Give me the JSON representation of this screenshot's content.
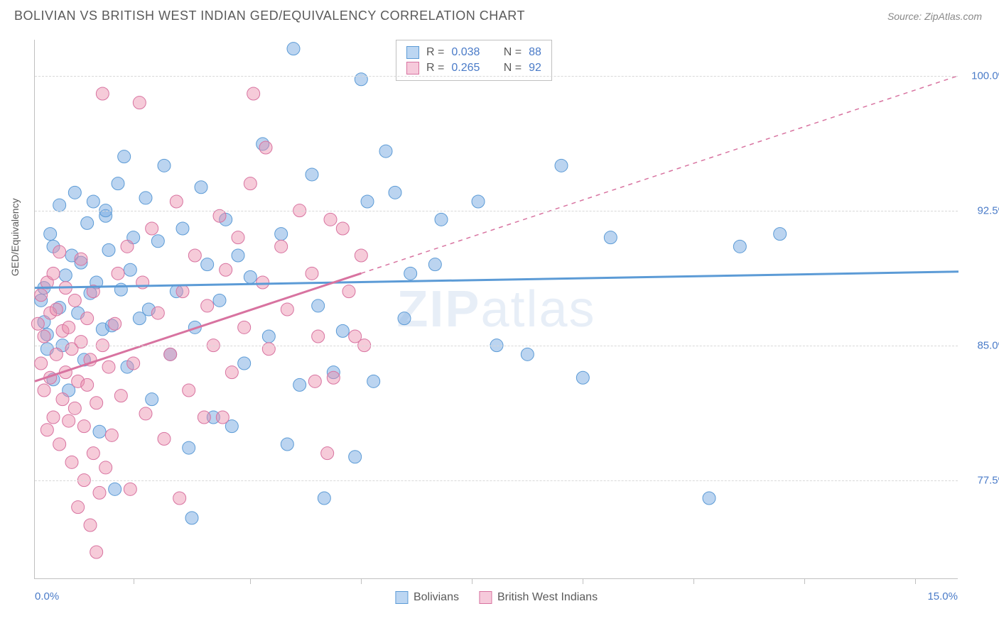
{
  "header": {
    "title": "BOLIVIAN VS BRITISH WEST INDIAN GED/EQUIVALENCY CORRELATION CHART",
    "source": "Source: ZipAtlas.com"
  },
  "watermark": {
    "left": "ZIP",
    "right": "atlas"
  },
  "chart": {
    "type": "scatter",
    "background_color": "#ffffff",
    "grid_color": "#d8d8d8",
    "axis_color": "#c0c0c0",
    "yaxis_title": "GED/Equivalency",
    "xlim": [
      0,
      15
    ],
    "ylim": [
      72,
      102
    ],
    "x_label_min": "0.0%",
    "x_label_max": "15.0%",
    "x_tick_positions": [
      1.6,
      3.5,
      5.3,
      7.1,
      8.9,
      10.7,
      12.5,
      14.3
    ],
    "y_gridlines": [
      77.5,
      85.0,
      92.5,
      100.0
    ],
    "y_tick_labels": [
      "77.5%",
      "85.0%",
      "92.5%",
      "100.0%"
    ],
    "label_color": "#4a7bc8",
    "label_fontsize": 15,
    "title_color": "#5a5a5a",
    "title_fontsize": 18,
    "marker_radius": 9,
    "marker_opacity": 0.55,
    "trendline_width": 3,
    "series": [
      {
        "name": "Bolivians",
        "color_fill": "rgba(120,170,225,0.5)",
        "color_stroke": "#5c9bd6",
        "swatch_fill": "#bcd6f2",
        "swatch_border": "#5c9bd6",
        "R": "0.038",
        "N": "88",
        "trend": {
          "y_at_x0": 88.2,
          "y_at_x15": 89.1,
          "solid_until_x": 15,
          "dash": false
        },
        "points": [
          [
            0.1,
            87.5
          ],
          [
            0.15,
            86.3
          ],
          [
            0.15,
            88.2
          ],
          [
            0.2,
            84.8
          ],
          [
            0.2,
            85.6
          ],
          [
            0.25,
            91.2
          ],
          [
            0.3,
            83.1
          ],
          [
            0.3,
            90.5
          ],
          [
            0.4,
            87.1
          ],
          [
            0.4,
            92.8
          ],
          [
            0.45,
            85.0
          ],
          [
            0.5,
            88.9
          ],
          [
            0.55,
            82.5
          ],
          [
            0.6,
            90.0
          ],
          [
            0.65,
            93.5
          ],
          [
            0.7,
            86.8
          ],
          [
            0.75,
            89.6
          ],
          [
            0.8,
            84.2
          ],
          [
            0.85,
            91.8
          ],
          [
            0.9,
            87.9
          ],
          [
            0.95,
            93.0
          ],
          [
            1.0,
            88.5
          ],
          [
            1.05,
            80.2
          ],
          [
            1.1,
            85.9
          ],
          [
            1.15,
            92.2
          ],
          [
            1.15,
            92.5
          ],
          [
            1.2,
            90.3
          ],
          [
            1.25,
            86.1
          ],
          [
            1.3,
            77.0
          ],
          [
            1.35,
            94.0
          ],
          [
            1.4,
            88.1
          ],
          [
            1.45,
            95.5
          ],
          [
            1.5,
            83.8
          ],
          [
            1.55,
            89.2
          ],
          [
            1.6,
            91.0
          ],
          [
            1.7,
            86.5
          ],
          [
            1.8,
            93.2
          ],
          [
            1.85,
            87.0
          ],
          [
            1.9,
            82.0
          ],
          [
            2.0,
            90.8
          ],
          [
            2.1,
            95.0
          ],
          [
            2.2,
            84.5
          ],
          [
            2.3,
            88.0
          ],
          [
            2.4,
            91.5
          ],
          [
            2.5,
            79.3
          ],
          [
            2.55,
            75.4
          ],
          [
            2.6,
            86.0
          ],
          [
            2.7,
            93.8
          ],
          [
            2.8,
            89.5
          ],
          [
            2.9,
            81.0
          ],
          [
            3.0,
            87.5
          ],
          [
            3.1,
            92.0
          ],
          [
            3.2,
            80.5
          ],
          [
            3.3,
            90.0
          ],
          [
            3.4,
            84.0
          ],
          [
            3.5,
            88.8
          ],
          [
            3.7,
            96.2
          ],
          [
            3.8,
            85.5
          ],
          [
            4.0,
            91.2
          ],
          [
            4.1,
            79.5
          ],
          [
            4.2,
            101.5
          ],
          [
            4.3,
            82.8
          ],
          [
            4.5,
            94.5
          ],
          [
            4.6,
            87.2
          ],
          [
            4.7,
            76.5
          ],
          [
            4.85,
            83.5
          ],
          [
            5.0,
            85.8
          ],
          [
            5.2,
            78.8
          ],
          [
            5.3,
            99.8
          ],
          [
            5.4,
            93.0
          ],
          [
            5.5,
            83.0
          ],
          [
            5.7,
            95.8
          ],
          [
            5.85,
            93.5
          ],
          [
            6.0,
            86.5
          ],
          [
            6.1,
            89.0
          ],
          [
            6.5,
            89.5
          ],
          [
            6.6,
            92.0
          ],
          [
            7.2,
            93.0
          ],
          [
            7.5,
            85.0
          ],
          [
            8.0,
            84.5
          ],
          [
            8.55,
            95.0
          ],
          [
            8.9,
            83.2
          ],
          [
            9.35,
            91.0
          ],
          [
            10.95,
            76.5
          ],
          [
            11.45,
            90.5
          ],
          [
            12.1,
            91.2
          ]
        ]
      },
      {
        "name": "British West Indians",
        "color_fill": "rgba(235,140,170,0.45)",
        "color_stroke": "#d873a0",
        "swatch_fill": "#f6cadb",
        "swatch_border": "#d873a0",
        "R": "0.265",
        "N": "92",
        "trend": {
          "y_at_x0": 83.0,
          "y_at_x15": 100.0,
          "solid_until_x": 5.3,
          "dash": true
        },
        "points": [
          [
            0.05,
            86.2
          ],
          [
            0.1,
            84.0
          ],
          [
            0.1,
            87.8
          ],
          [
            0.15,
            82.5
          ],
          [
            0.15,
            85.5
          ],
          [
            0.2,
            80.3
          ],
          [
            0.2,
            88.5
          ],
          [
            0.25,
            83.2
          ],
          [
            0.25,
            86.8
          ],
          [
            0.3,
            81.0
          ],
          [
            0.3,
            89.0
          ],
          [
            0.35,
            84.5
          ],
          [
            0.35,
            87.0
          ],
          [
            0.4,
            79.5
          ],
          [
            0.4,
            90.2
          ],
          [
            0.45,
            82.0
          ],
          [
            0.45,
            85.8
          ],
          [
            0.5,
            83.5
          ],
          [
            0.5,
            88.2
          ],
          [
            0.55,
            80.8
          ],
          [
            0.55,
            86.0
          ],
          [
            0.6,
            78.5
          ],
          [
            0.6,
            84.8
          ],
          [
            0.65,
            81.5
          ],
          [
            0.65,
            87.5
          ],
          [
            0.7,
            76.0
          ],
          [
            0.7,
            83.0
          ],
          [
            0.75,
            85.2
          ],
          [
            0.75,
            89.8
          ],
          [
            0.8,
            77.5
          ],
          [
            0.8,
            80.5
          ],
          [
            0.85,
            82.8
          ],
          [
            0.85,
            86.5
          ],
          [
            0.9,
            75.0
          ],
          [
            0.9,
            84.2
          ],
          [
            0.95,
            79.0
          ],
          [
            0.95,
            88.0
          ],
          [
            1.0,
            73.5
          ],
          [
            1.0,
            81.8
          ],
          [
            1.05,
            76.8
          ],
          [
            1.1,
            85.0
          ],
          [
            1.1,
            99.0
          ],
          [
            1.15,
            78.2
          ],
          [
            1.2,
            83.8
          ],
          [
            1.25,
            80.0
          ],
          [
            1.3,
            86.2
          ],
          [
            1.35,
            89.0
          ],
          [
            1.4,
            82.2
          ],
          [
            1.5,
            90.5
          ],
          [
            1.55,
            77.0
          ],
          [
            1.6,
            84.0
          ],
          [
            1.7,
            98.5
          ],
          [
            1.75,
            88.5
          ],
          [
            1.8,
            81.2
          ],
          [
            1.9,
            91.5
          ],
          [
            2.0,
            86.8
          ],
          [
            2.1,
            79.8
          ],
          [
            2.2,
            84.5
          ],
          [
            2.3,
            93.0
          ],
          [
            2.35,
            76.5
          ],
          [
            2.4,
            88.0
          ],
          [
            2.5,
            82.5
          ],
          [
            2.6,
            90.0
          ],
          [
            2.75,
            81.0
          ],
          [
            2.8,
            87.2
          ],
          [
            2.9,
            85.0
          ],
          [
            3.0,
            92.2
          ],
          [
            3.05,
            81.0
          ],
          [
            3.1,
            89.2
          ],
          [
            3.2,
            83.5
          ],
          [
            3.3,
            91.0
          ],
          [
            3.4,
            86.0
          ],
          [
            3.5,
            94.0
          ],
          [
            3.55,
            99.0
          ],
          [
            3.7,
            88.5
          ],
          [
            3.75,
            96.0
          ],
          [
            3.8,
            84.8
          ],
          [
            4.0,
            90.5
          ],
          [
            4.1,
            87.0
          ],
          [
            4.3,
            92.5
          ],
          [
            4.5,
            89.0
          ],
          [
            4.55,
            83.0
          ],
          [
            4.6,
            85.5
          ],
          [
            4.75,
            79.0
          ],
          [
            4.8,
            92.0
          ],
          [
            4.85,
            83.2
          ],
          [
            5.0,
            91.5
          ],
          [
            5.1,
            88.0
          ],
          [
            5.2,
            85.5
          ],
          [
            5.3,
            90.0
          ],
          [
            5.35,
            85.0
          ]
        ]
      }
    ]
  },
  "stats_labels": {
    "R": "R =",
    "N": "N ="
  }
}
